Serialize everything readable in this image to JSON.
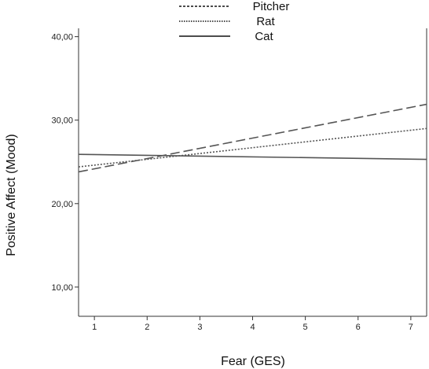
{
  "chart_data": {
    "type": "line",
    "title": "",
    "xlabel": "Fear (GES)",
    "ylabel": "Positive Affect (Mood)",
    "xlim": [
      0.7,
      7.3
    ],
    "ylim": [
      6.5,
      41.0
    ],
    "x_ticks": [
      1,
      2,
      3,
      4,
      5,
      6,
      7
    ],
    "x_tick_labels": [
      "1",
      "2",
      "3",
      "4",
      "5",
      "6",
      "7"
    ],
    "y_ticks": [
      10,
      20,
      30,
      40
    ],
    "y_tick_labels": [
      "10,00",
      "20,00",
      "30,00",
      "40,00"
    ],
    "grid": false,
    "legend_position": "top-center",
    "series": [
      {
        "name": "Pitcher",
        "style": "dashed",
        "color": "#555555",
        "x": [
          0.7,
          7.3
        ],
        "y": [
          23.8,
          31.9
        ]
      },
      {
        "name": "Rat",
        "style": "dotted",
        "color": "#555555",
        "x": [
          0.7,
          7.3
        ],
        "y": [
          24.4,
          29.0
        ]
      },
      {
        "name": "Cat",
        "style": "solid",
        "color": "#555555",
        "x": [
          0.7,
          7.3
        ],
        "y": [
          25.9,
          25.3
        ]
      }
    ]
  }
}
